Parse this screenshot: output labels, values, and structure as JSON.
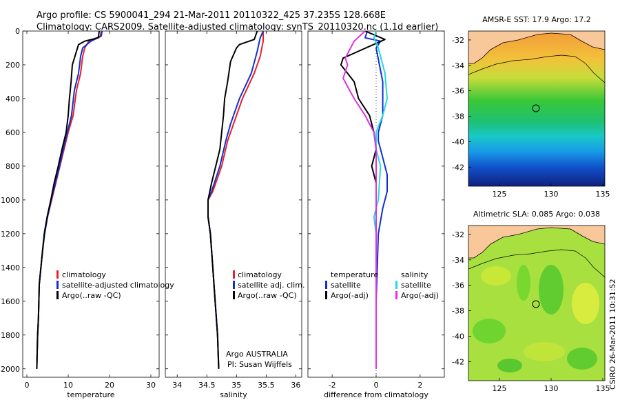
{
  "header": {
    "line1": "Argo profile: CS 5900041_294 21-Mar-2011 20110322_425 37.235S 128.668E",
    "line2": "Climatology: CARS2009. Satellite-adjusted climatology: synTS_20110320.nc (1.1d earlier)"
  },
  "stamp": "CSIRO 26-Mar-2011 10:31:52",
  "colors": {
    "climatology": "#e8202a",
    "satellite": "#1030d0",
    "argo": "#000000",
    "sat_sal": "#20d8e8",
    "argo_sal": "#e030e0"
  },
  "chart_data": [
    {
      "type": "line",
      "name": "temperature",
      "xlabel": "temperature",
      "ylabel": "",
      "xlim": [
        -1,
        32
      ],
      "ylim": [
        2050,
        0
      ],
      "xticks": [
        "0",
        "10",
        "20",
        "30"
      ],
      "xtick_values": [
        0,
        10,
        20,
        30
      ],
      "yticks": [
        "0",
        "200",
        "400",
        "600",
        "800",
        "1000",
        "1200",
        "1400",
        "1600",
        "1800",
        "2000"
      ],
      "ytick_values": [
        0,
        200,
        400,
        600,
        800,
        1000,
        1200,
        1400,
        1600,
        1800,
        2000
      ],
      "legend": [
        "climatology",
        "satellite-adjusted climatology",
        "Argo(..raw -QC)"
      ],
      "series": [
        {
          "name": "climatology",
          "color": "#e8202a",
          "points": [
            [
              18,
              0
            ],
            [
              17.8,
              30
            ],
            [
              15,
              60
            ],
            [
              14,
              100
            ],
            [
              13.5,
              150
            ],
            [
              13,
              250
            ],
            [
              12,
              350
            ],
            [
              11.2,
              500
            ],
            [
              10,
              600
            ],
            [
              9,
              700
            ],
            [
              8,
              800
            ],
            [
              7,
              900
            ],
            [
              6,
              1000
            ],
            [
              5,
              1100
            ],
            [
              4.3,
              1200
            ],
            [
              3.8,
              1300
            ],
            [
              3.4,
              1400
            ],
            [
              3,
              1500
            ],
            [
              2.9,
              1600
            ],
            [
              2.8,
              1700
            ],
            [
              2.6,
              1800
            ],
            [
              2.5,
              1900
            ],
            [
              2.4,
              2000
            ]
          ]
        },
        {
          "name": "satellite-adjusted climatology",
          "color": "#1030d0",
          "points": [
            [
              18.2,
              0
            ],
            [
              18,
              30
            ],
            [
              15.5,
              60
            ],
            [
              13.5,
              100
            ],
            [
              13,
              150
            ],
            [
              12.5,
              250
            ],
            [
              11.5,
              350
            ],
            [
              10.8,
              500
            ],
            [
              9.8,
              600
            ],
            [
              8.8,
              700
            ],
            [
              7.9,
              800
            ],
            [
              6.9,
              900
            ],
            [
              5.9,
              1000
            ],
            [
              5,
              1100
            ],
            [
              4.3,
              1200
            ],
            [
              3.8,
              1300
            ],
            [
              3.4,
              1400
            ],
            [
              3,
              1500
            ],
            [
              2.9,
              1600
            ],
            [
              2.8,
              1700
            ],
            [
              2.6,
              1800
            ],
            [
              2.5,
              1900
            ],
            [
              2.4,
              2000
            ]
          ]
        },
        {
          "name": "Argo(..raw -QC)",
          "color": "#000000",
          "points": [
            [
              17.5,
              0
            ],
            [
              17.3,
              40
            ],
            [
              14,
              60
            ],
            [
              12.5,
              80
            ],
            [
              12,
              120
            ],
            [
              11,
              200
            ],
            [
              10.7,
              300
            ],
            [
              10.3,
              400
            ],
            [
              10,
              500
            ],
            [
              9.5,
              600
            ],
            [
              8.5,
              700
            ],
            [
              7.6,
              800
            ],
            [
              6.6,
              900
            ],
            [
              5.8,
              1000
            ],
            [
              4.9,
              1100
            ],
            [
              4.2,
              1200
            ],
            [
              3.8,
              1300
            ],
            [
              3.4,
              1400
            ],
            [
              3,
              1500
            ],
            [
              2.9,
              1600
            ],
            [
              2.8,
              1700
            ],
            [
              2.6,
              1800
            ],
            [
              2.5,
              1900
            ],
            [
              2.4,
              2000
            ]
          ]
        }
      ]
    },
    {
      "type": "line",
      "name": "salinity",
      "xlabel": "salinity",
      "ylabel": "",
      "xlim": [
        33.8,
        36.1
      ],
      "ylim": [
        2050,
        0
      ],
      "xticks": [
        "34",
        "34.5",
        "35",
        "35.5",
        "36"
      ],
      "xtick_values": [
        34,
        34.5,
        35,
        35.5,
        36
      ],
      "legend": [
        "climatology",
        "satellite adj. clim.",
        "Argo(..raw -QC)"
      ],
      "annotation": [
        "Argo AUSTRALIA",
        "PI: Susan Wijffels"
      ],
      "series": [
        {
          "name": "climatology",
          "color": "#e8202a",
          "points": [
            [
              35.45,
              0
            ],
            [
              35.45,
              60
            ],
            [
              35.4,
              150
            ],
            [
              35.3,
              250
            ],
            [
              35.1,
              400
            ],
            [
              34.95,
              550
            ],
            [
              34.85,
              650
            ],
            [
              34.75,
              800
            ],
            [
              34.6,
              950
            ],
            [
              34.52,
              1000
            ],
            [
              34.52,
              1100
            ],
            [
              34.56,
              1200
            ],
            [
              34.6,
              1400
            ],
            [
              34.64,
              1600
            ],
            [
              34.68,
              1800
            ],
            [
              34.7,
              2000
            ]
          ]
        },
        {
          "name": "satellite adj. clim.",
          "color": "#1030d0",
          "points": [
            [
              35.45,
              0
            ],
            [
              35.4,
              40
            ],
            [
              35.35,
              120
            ],
            [
              35.25,
              250
            ],
            [
              35.05,
              400
            ],
            [
              34.9,
              550
            ],
            [
              34.82,
              650
            ],
            [
              34.72,
              800
            ],
            [
              34.58,
              950
            ],
            [
              34.52,
              1000
            ],
            [
              34.52,
              1100
            ],
            [
              34.56,
              1200
            ],
            [
              34.6,
              1400
            ],
            [
              34.64,
              1600
            ],
            [
              34.68,
              1800
            ],
            [
              34.7,
              2000
            ]
          ]
        },
        {
          "name": "Argo(..raw -QC)",
          "color": "#000000",
          "points": [
            [
              35.35,
              0
            ],
            [
              35.3,
              50
            ],
            [
              35.05,
              80
            ],
            [
              35,
              100
            ],
            [
              34.9,
              180
            ],
            [
              34.85,
              300
            ],
            [
              34.8,
              400
            ],
            [
              34.78,
              500
            ],
            [
              34.75,
              600
            ],
            [
              34.72,
              700
            ],
            [
              34.65,
              800
            ],
            [
              34.58,
              900
            ],
            [
              34.52,
              1000
            ],
            [
              34.52,
              1100
            ],
            [
              34.56,
              1200
            ],
            [
              34.6,
              1400
            ],
            [
              34.64,
              1600
            ],
            [
              34.68,
              1800
            ],
            [
              34.7,
              2000
            ]
          ]
        }
      ]
    },
    {
      "type": "line",
      "name": "difference",
      "xlabel": "difference from climatology",
      "ylabel": "",
      "xlim": [
        -3.1,
        3.1
      ],
      "ylim": [
        2050,
        0
      ],
      "xticks": [
        "-2",
        "0",
        "2"
      ],
      "xtick_values": [
        -2,
        0,
        2
      ],
      "legend": [
        "temperature",
        "satellite",
        "Argo(-adj)",
        "salinity",
        "satellite",
        "Argo(-adj)"
      ],
      "series": [
        {
          "name": "temperature satellite",
          "color": "#1030d0",
          "points": [
            [
              -0.4,
              0
            ],
            [
              -0.5,
              40
            ],
            [
              0.2,
              60
            ],
            [
              0,
              100
            ],
            [
              0.3,
              300
            ],
            [
              0.3,
              500
            ],
            [
              0.1,
              600
            ],
            [
              0.1,
              650
            ],
            [
              0.2,
              700
            ],
            [
              0.5,
              850
            ],
            [
              0.5,
              950
            ],
            [
              0.3,
              1050
            ],
            [
              0.1,
              1200
            ],
            [
              0,
              1600
            ],
            [
              0,
              2000
            ]
          ]
        },
        {
          "name": "temperature Argo(-adj)",
          "color": "#000000",
          "points": [
            [
              -0.5,
              0
            ],
            [
              0.4,
              50
            ],
            [
              -1.5,
              160
            ],
            [
              -1.6,
              200
            ],
            [
              -1,
              300
            ],
            [
              -0.8,
              400
            ],
            [
              -0.3,
              500
            ],
            [
              -0.1,
              600
            ],
            [
              0,
              700
            ],
            [
              -0.2,
              800
            ],
            [
              0,
              900
            ],
            [
              0,
              1100
            ],
            [
              0,
              1400
            ],
            [
              0,
              2000
            ]
          ]
        },
        {
          "name": "salinity satellite",
          "color": "#20d8e8",
          "points": [
            [
              0,
              0
            ],
            [
              -0.1,
              40
            ],
            [
              0.1,
              100
            ],
            [
              0.4,
              250
            ],
            [
              0.5,
              400
            ],
            [
              0.3,
              500
            ],
            [
              0,
              600
            ],
            [
              0,
              700
            ],
            [
              0.2,
              800
            ],
            [
              0.1,
              1000
            ],
            [
              -0.1,
              1100
            ],
            [
              0,
              1200
            ],
            [
              0,
              2000
            ]
          ]
        },
        {
          "name": "salinity Argo(-adj)",
          "color": "#e030e0",
          "points": [
            [
              -0.5,
              0
            ],
            [
              -1,
              60
            ],
            [
              -1.4,
              160
            ],
            [
              -1.3,
              200
            ],
            [
              -1.5,
              280
            ],
            [
              -1,
              400
            ],
            [
              -0.5,
              500
            ],
            [
              -0.1,
              600
            ],
            [
              0,
              700
            ],
            [
              0,
              1000
            ],
            [
              0,
              2000
            ]
          ]
        }
      ]
    }
  ],
  "maps": [
    {
      "title": "AMSR-E SST: 17.9 Argo: 17.2",
      "xticks": [
        "125",
        "130",
        "135"
      ],
      "yticks": [
        "-32",
        "-34",
        "-36",
        "-38",
        "-40",
        "-42"
      ]
    },
    {
      "title": "Altimetric SLA: 0.085 Argo: 0.038",
      "xticks": [
        "125",
        "130",
        "135"
      ],
      "yticks": [
        "-32",
        "-34",
        "-36",
        "-38",
        "-40",
        "-42"
      ]
    }
  ]
}
